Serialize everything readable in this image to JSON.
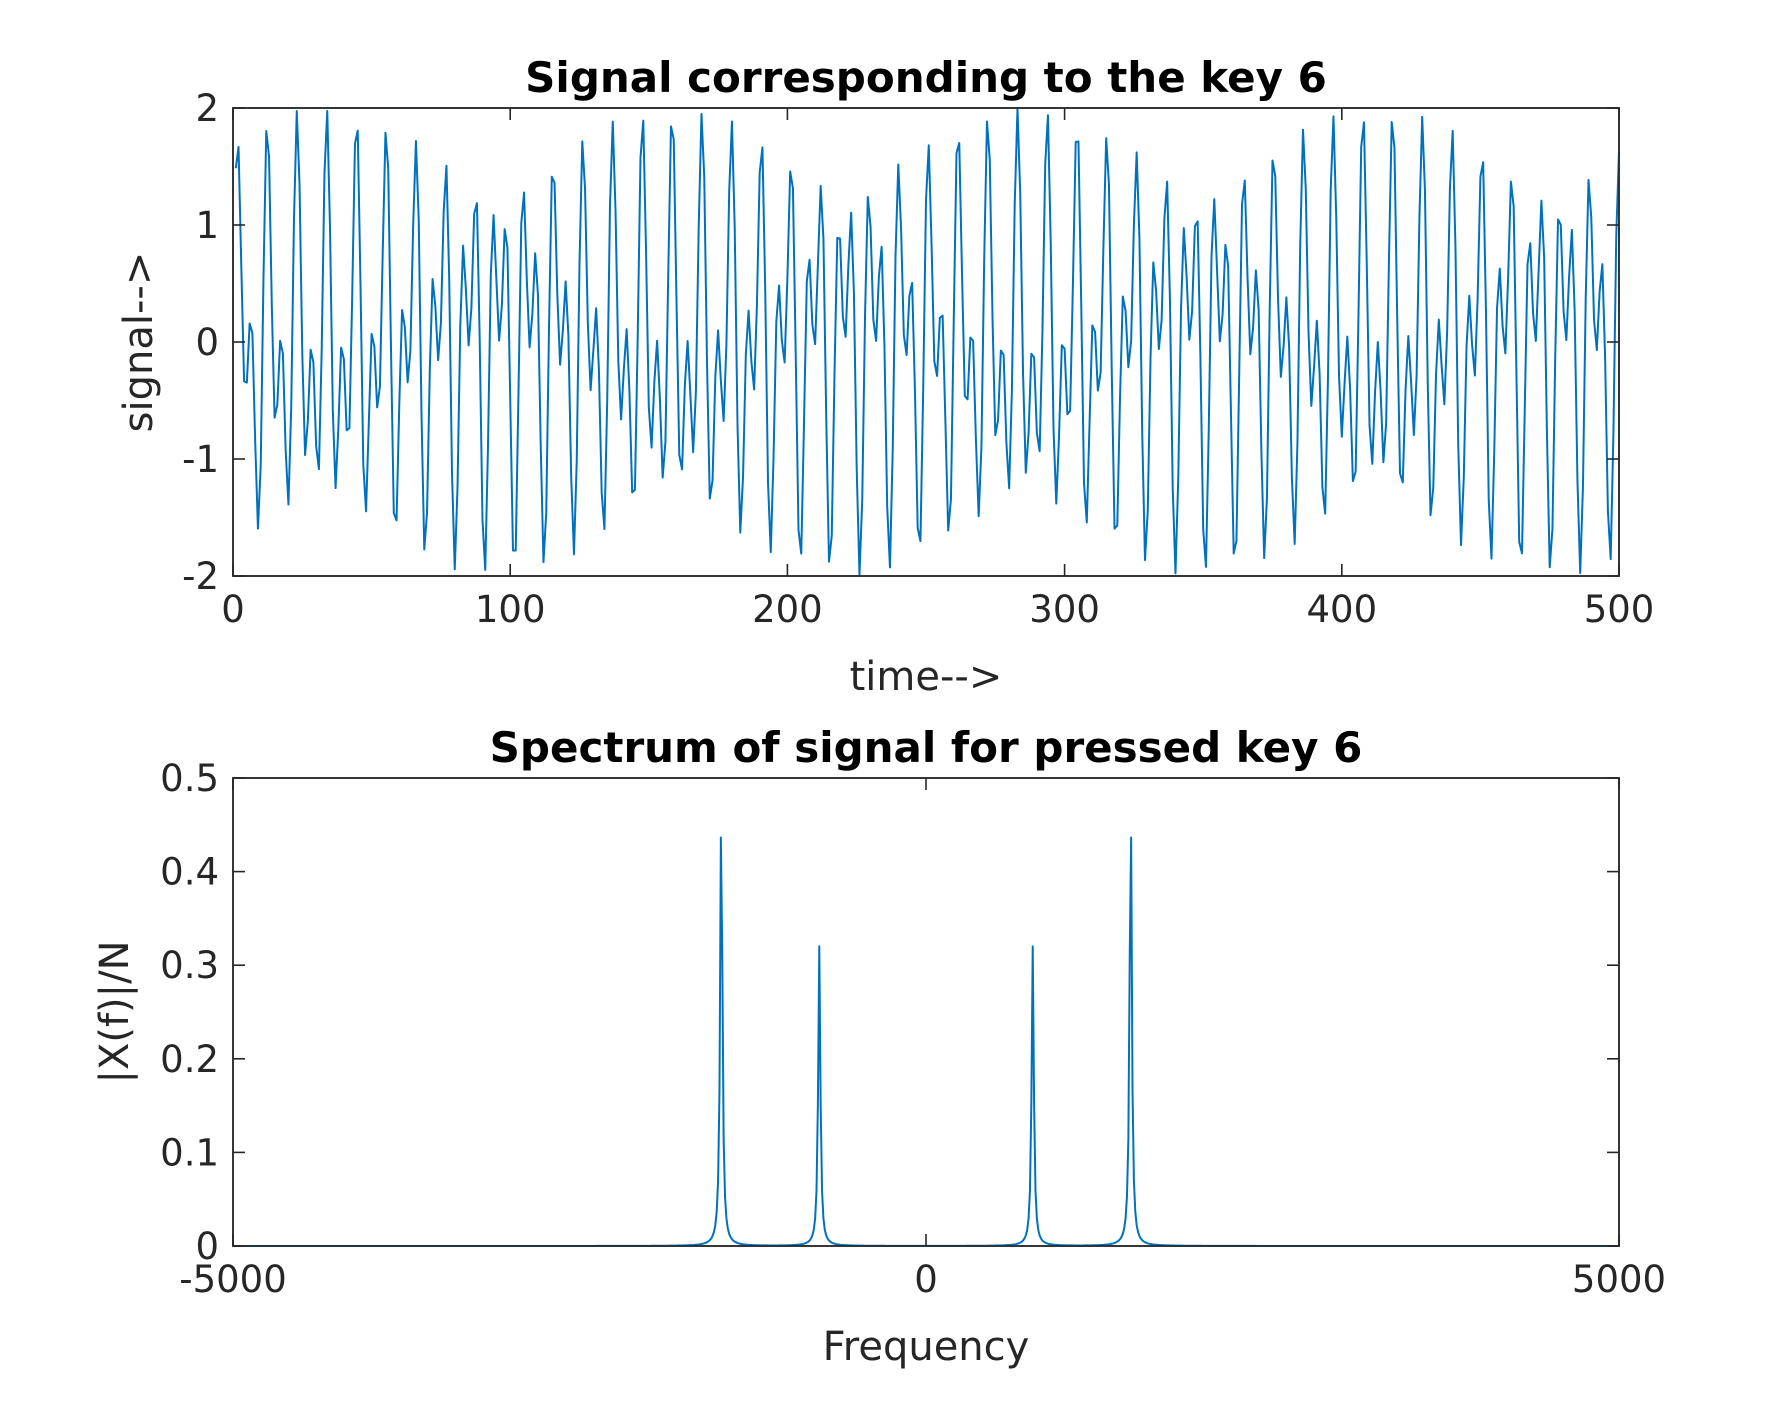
{
  "chart_data": [
    {
      "type": "line",
      "title": "Signal corresponding to the key 6",
      "xlabel": "time-->",
      "ylabel": "signal-->",
      "xlim": [
        0,
        500
      ],
      "ylim": [
        -2,
        2
      ],
      "xticks": [
        0,
        100,
        200,
        300,
        400,
        500
      ],
      "xtick_labels": [
        "0",
        "100",
        "200",
        "300",
        "400",
        "500"
      ],
      "yticks": [
        -2,
        -1,
        0,
        1,
        2
      ],
      "ytick_labels": [
        "-2",
        "-1",
        "0",
        "1",
        "2"
      ],
      "grid": false,
      "color": "#0072BD",
      "series": [
        {
          "signal": "sin(2*pi*770*t/8000) + sin(2*pi*1477*t/8000)",
          "x_start": 1,
          "x_end": 500,
          "x_step": 1
        }
      ]
    },
    {
      "type": "line",
      "title": "Spectrum of signal for pressed key 6",
      "xlabel": "Frequency",
      "ylabel": "|X(f)|/N",
      "xlim": [
        -5000,
        5000
      ],
      "ylim": [
        0,
        0.5
      ],
      "xticks": [
        -5000,
        0,
        5000
      ],
      "xtick_labels": [
        "-5000",
        "0",
        "5000"
      ],
      "yticks": [
        0,
        0.1,
        0.2,
        0.3,
        0.4,
        0.5
      ],
      "ytick_labels": [
        "0",
        "0.1",
        "0.2",
        "0.3",
        "0.4",
        "0.5"
      ],
      "grid": false,
      "color": "#0072BD",
      "peaks": [
        {
          "x": -1477,
          "y": 0.48
        },
        {
          "x": -770,
          "y": 0.32
        },
        {
          "x": 770,
          "y": 0.32
        },
        {
          "x": 1477,
          "y": 0.48
        }
      ],
      "baseline": 0.0
    }
  ]
}
